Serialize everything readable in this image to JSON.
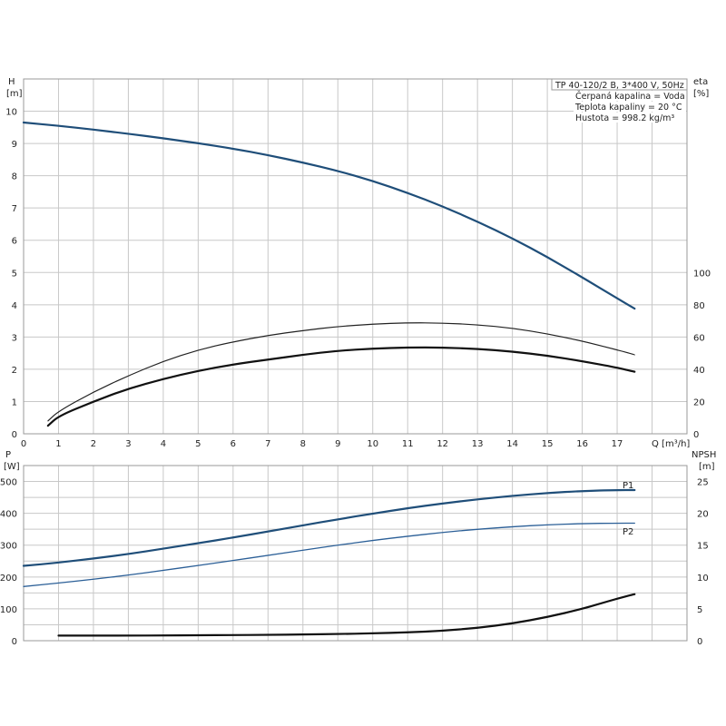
{
  "chart_data": [
    {
      "type": "line",
      "panel": "top",
      "x_label": "Q [m³/h]",
      "x_ticks": [
        "0",
        "1",
        "2",
        "3",
        "4",
        "5",
        "6",
        "7",
        "8",
        "9",
        "10",
        "11",
        "12",
        "13",
        "14",
        "15",
        "16",
        "17"
      ],
      "xlim": [
        0,
        19
      ],
      "left_axis": {
        "name": "H",
        "unit": "[m]",
        "ylim": [
          0,
          11
        ],
        "ticks": [
          "0",
          "1",
          "2",
          "3",
          "4",
          "5",
          "6",
          "7",
          "8",
          "9",
          "10"
        ]
      },
      "right_axis": {
        "name": "eta",
        "unit": "[%]",
        "ticks": [
          "0",
          "20",
          "40",
          "60",
          "80",
          "100"
        ]
      },
      "info_lines": [
        "TP 40-120/2 B, 3*400 V, 50Hz",
        "Čerpaná kapalina = Voda",
        "Teplota kapaliny = 20 °C",
        "Hustota = 998.2 kg/m³"
      ],
      "series": [
        {
          "axis": "left",
          "color": "#1f4e79",
          "width": 2.2,
          "x": [
            0,
            1,
            2,
            3,
            4,
            5,
            6,
            7,
            8,
            9,
            10,
            11,
            12,
            13,
            14,
            15,
            16,
            17,
            17.5
          ],
          "y": [
            9.65,
            9.55,
            9.43,
            9.3,
            9.16,
            9.01,
            8.84,
            8.64,
            8.41,
            8.15,
            7.84,
            7.47,
            7.05,
            6.58,
            6.06,
            5.48,
            4.85,
            4.2,
            3.88
          ]
        },
        {
          "axis": "right",
          "color": "#222222",
          "width": 1.2,
          "x": [
            0.7,
            1,
            2,
            3,
            4,
            5,
            6,
            7,
            8,
            9,
            10,
            11,
            12,
            13,
            14,
            15,
            16,
            17,
            17.5
          ],
          "y": [
            8,
            14,
            26,
            36,
            45,
            52,
            57,
            61,
            64,
            66.5,
            68,
            68.8,
            68.7,
            67.6,
            65.5,
            62,
            57.5,
            52,
            49
          ]
        },
        {
          "axis": "right",
          "color": "#111111",
          "width": 2.2,
          "x": [
            0.7,
            1,
            2,
            3,
            4,
            5,
            6,
            7,
            8,
            9,
            10,
            11,
            12,
            13,
            14,
            15,
            16,
            17,
            17.5
          ],
          "y": [
            5,
            11,
            20,
            28,
            34,
            39,
            43,
            46,
            49,
            51.5,
            52.8,
            53.5,
            53.5,
            52.6,
            51,
            48.5,
            45,
            41,
            38.5
          ]
        }
      ]
    },
    {
      "type": "line",
      "panel": "bottom",
      "left_axis": {
        "name": "P",
        "unit": "[W]",
        "ylim": [
          0,
          550
        ],
        "ticks": [
          "0",
          "100",
          "200",
          "300",
          "400",
          "500"
        ]
      },
      "right_axis": {
        "name": "NPSH",
        "unit": "[m]",
        "ticks": [
          "0",
          "5",
          "10",
          "15",
          "20",
          "25"
        ]
      },
      "series": [
        {
          "name": "P1",
          "axis": "left",
          "color": "#1f4e79",
          "width": 2.2,
          "x": [
            0,
            1,
            2,
            3,
            4,
            5,
            6,
            7,
            8,
            9,
            10,
            11,
            12,
            13,
            14,
            15,
            16,
            17,
            17.5
          ],
          "y": [
            235,
            245,
            258,
            272,
            289,
            306,
            324,
            343,
            362,
            381,
            399,
            416,
            431,
            444,
            455,
            464,
            470,
            473,
            473
          ]
        },
        {
          "name": "P2",
          "axis": "left",
          "color": "#2b5f97",
          "width": 1.3,
          "x": [
            0,
            1,
            2,
            3,
            4,
            5,
            6,
            7,
            8,
            9,
            10,
            11,
            12,
            13,
            14,
            15,
            16,
            17,
            17.5
          ],
          "y": [
            170,
            181,
            193,
            206,
            221,
            236,
            252,
            268,
            284,
            300,
            315,
            328,
            340,
            350,
            358,
            364,
            368,
            369,
            369
          ]
        },
        {
          "axis": "right",
          "color": "#111111",
          "width": 2.2,
          "x": [
            1,
            2,
            3,
            4,
            5,
            6,
            7,
            8,
            9,
            10,
            11,
            12,
            13,
            14,
            15,
            16,
            16.5,
            17,
            17.5
          ],
          "y": [
            0.8,
            0.8,
            0.8,
            0.82,
            0.85,
            0.88,
            0.92,
            0.97,
            1.05,
            1.15,
            1.3,
            1.55,
            2.0,
            2.7,
            3.7,
            5.0,
            5.8,
            6.6,
            7.3
          ]
        }
      ]
    }
  ]
}
